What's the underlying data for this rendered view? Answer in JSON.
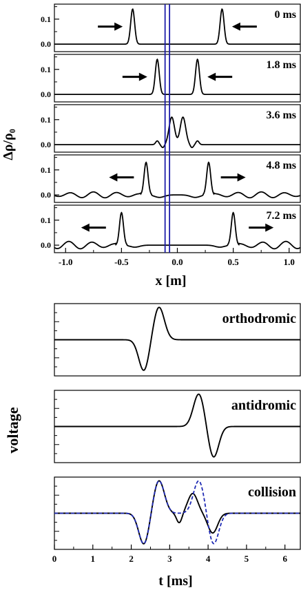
{
  "colors": {
    "curve": "#000000",
    "frame": "#000000",
    "marker": "#1a1aa8",
    "collision_dashed": "#1f2ab4"
  },
  "top_figure": {
    "ylabel": "Δρ/ρ₀",
    "xlabel": "x [m]",
    "x_ticks": [
      "-1.0",
      "-0.5",
      "0.0",
      "0.5",
      "1.0"
    ],
    "y_ticks": [
      "0.0",
      "0.1"
    ]
  },
  "bottom_figure": {
    "ylabel": "voltage",
    "xlabel": "t [ms]",
    "x_ticks": [
      "0",
      "1",
      "2",
      "3",
      "4",
      "5",
      "6"
    ]
  },
  "chart_data": [
    {
      "type": "line",
      "xlim": [
        -1.1,
        1.1
      ],
      "ylim": [
        -0.03,
        0.16
      ],
      "panels": [
        {
          "label": "0 ms",
          "pulses": [
            {
              "center": -0.4,
              "amplitude": 0.14
            },
            {
              "center": 0.4,
              "amplitude": 0.14
            }
          ],
          "arrows": [
            {
              "x": -0.6,
              "direction": "right"
            },
            {
              "x": 0.6,
              "direction": "left"
            }
          ]
        },
        {
          "label": "1.8 ms",
          "pulses": [
            {
              "center": -0.18,
              "amplitude": 0.14
            },
            {
              "center": 0.18,
              "amplitude": 0.14
            }
          ],
          "arrows": [
            {
              "x": -0.38,
              "direction": "right"
            },
            {
              "x": 0.38,
              "direction": "left"
            }
          ]
        },
        {
          "label": "3.6 ms",
          "pulses": [
            {
              "center": -0.05,
              "amplitude": 0.11
            },
            {
              "center": 0.05,
              "amplitude": 0.11
            }
          ],
          "arrows": []
        },
        {
          "label": "4.8 ms",
          "pulses": [
            {
              "center": -0.28,
              "amplitude": 0.13
            },
            {
              "center": 0.28,
              "amplitude": 0.13
            }
          ],
          "arrows": [
            {
              "x": -0.5,
              "direction": "left"
            },
            {
              "x": 0.5,
              "direction": "right"
            }
          ]
        },
        {
          "label": "7.2 ms",
          "pulses": [
            {
              "center": -0.5,
              "amplitude": 0.13
            },
            {
              "center": 0.5,
              "amplitude": 0.13
            }
          ],
          "arrows": [
            {
              "x": -0.75,
              "direction": "left"
            },
            {
              "x": 0.75,
              "direction": "right"
            }
          ]
        }
      ],
      "marker_lines_x": [
        -0.11,
        -0.07
      ]
    },
    {
      "type": "line",
      "xlim": [
        0,
        6.4
      ],
      "ylim": [
        -1.1,
        1.1
      ],
      "panels": [
        {
          "label": "orthodromic",
          "extrema": [
            {
              "t": 2.33,
              "v": -0.95
            },
            {
              "t": 2.72,
              "v": 1.0
            }
          ]
        },
        {
          "label": "antidromic",
          "extrema": [
            {
              "t": 3.76,
              "v": 1.0
            },
            {
              "t": 4.14,
              "v": -0.95
            }
          ]
        },
        {
          "label": "collision",
          "extrema": [
            {
              "t": 2.33,
              "v": -0.95
            },
            {
              "t": 2.72,
              "v": 1.0
            },
            {
              "t": 3.25,
              "v": -0.25
            },
            {
              "t": 3.6,
              "v": 0.55
            },
            {
              "t": 4.14,
              "v": -0.6
            }
          ],
          "dashed_extrema": [
            {
              "t": 2.33,
              "v": -0.95
            },
            {
              "t": 2.72,
              "v": 1.0
            },
            {
              "t": 3.76,
              "v": 1.05
            },
            {
              "t": 4.14,
              "v": -0.95
            }
          ]
        }
      ]
    }
  ]
}
